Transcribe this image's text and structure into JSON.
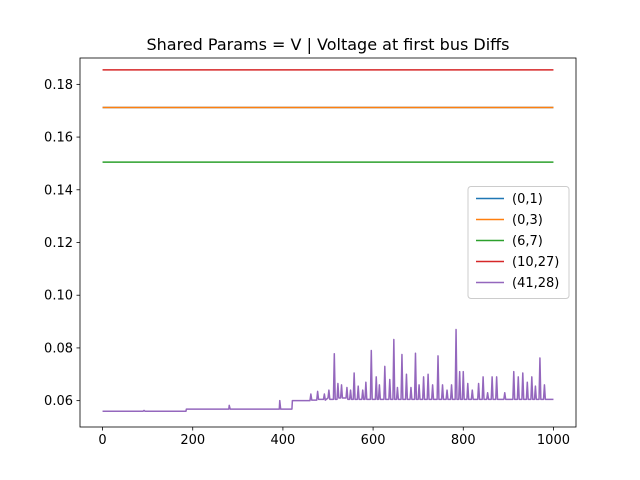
{
  "chart_data": {
    "type": "line",
    "title": "Shared Params =  V | Voltage at first bus Diffs",
    "xlabel": "",
    "ylabel": "",
    "xlim": [
      -50,
      1050
    ],
    "ylim": [
      0.05,
      0.19
    ],
    "x_ticks": [
      0,
      200,
      400,
      600,
      800,
      1000
    ],
    "x_tick_labels": [
      "0",
      "200",
      "400",
      "600",
      "800",
      "1000"
    ],
    "y_ticks": [
      0.06,
      0.08,
      0.1,
      0.12,
      0.14,
      0.16,
      0.18
    ],
    "y_tick_labels": [
      "0.06",
      "0.08",
      "0.10",
      "0.12",
      "0.14",
      "0.16",
      "0.18"
    ],
    "grid": false,
    "legend_position": "center-right",
    "series": [
      {
        "name": "(0,1)",
        "color": "#1f77b4",
        "points": [
          [
            0,
            0.1712
          ],
          [
            1000,
            0.1712
          ]
        ]
      },
      {
        "name": "(0,3)",
        "color": "#ff7f0e",
        "points": [
          [
            0,
            0.1712
          ],
          [
            1000,
            0.1712
          ]
        ]
      },
      {
        "name": "(6,7)",
        "color": "#2ca02c",
        "points": [
          [
            0,
            0.1505
          ],
          [
            1000,
            0.1505
          ]
        ]
      },
      {
        "name": "(10,27)",
        "color": "#d62728",
        "points": [
          [
            0,
            0.1855
          ],
          [
            1000,
            0.1855
          ]
        ]
      },
      {
        "name": "(41,28)",
        "color": "#9467bd",
        "points": [
          [
            0,
            0.056
          ],
          [
            90,
            0.056
          ],
          [
            92,
            0.0563
          ],
          [
            94,
            0.056
          ],
          [
            185,
            0.056
          ],
          [
            186,
            0.0568
          ],
          [
            280,
            0.0568
          ],
          [
            281,
            0.0582
          ],
          [
            283,
            0.0568
          ],
          [
            392,
            0.0568
          ],
          [
            393,
            0.06
          ],
          [
            395,
            0.0568
          ],
          [
            420,
            0.0568
          ],
          [
            421,
            0.06
          ],
          [
            460,
            0.06
          ],
          [
            462,
            0.0625
          ],
          [
            464,
            0.0602
          ],
          [
            475,
            0.0602
          ],
          [
            477,
            0.0635
          ],
          [
            479,
            0.0605
          ],
          [
            490,
            0.0605
          ],
          [
            492,
            0.0625
          ],
          [
            494,
            0.0602
          ],
          [
            500,
            0.061
          ],
          [
            502,
            0.064
          ],
          [
            504,
            0.0605
          ],
          [
            512,
            0.0605
          ],
          [
            514,
            0.0778
          ],
          [
            516,
            0.0605
          ],
          [
            520,
            0.0605
          ],
          [
            522,
            0.0665
          ],
          [
            524,
            0.061
          ],
          [
            528,
            0.061
          ],
          [
            530,
            0.066
          ],
          [
            532,
            0.061
          ],
          [
            540,
            0.061
          ],
          [
            542,
            0.065
          ],
          [
            544,
            0.0605
          ],
          [
            548,
            0.0605
          ],
          [
            550,
            0.064
          ],
          [
            552,
            0.0605
          ],
          [
            556,
            0.0605
          ],
          [
            558,
            0.0705
          ],
          [
            560,
            0.0605
          ],
          [
            565,
            0.0605
          ],
          [
            567,
            0.0655
          ],
          [
            569,
            0.0605
          ],
          [
            575,
            0.0605
          ],
          [
            577,
            0.064
          ],
          [
            579,
            0.0605
          ],
          [
            582,
            0.0605
          ],
          [
            584,
            0.067
          ],
          [
            586,
            0.0605
          ],
          [
            594,
            0.0605
          ],
          [
            596,
            0.079
          ],
          [
            598,
            0.0605
          ],
          [
            605,
            0.0605
          ],
          [
            607,
            0.069
          ],
          [
            609,
            0.0605
          ],
          [
            612,
            0.0605
          ],
          [
            614,
            0.066
          ],
          [
            616,
            0.0605
          ],
          [
            624,
            0.0605
          ],
          [
            626,
            0.073
          ],
          [
            628,
            0.0605
          ],
          [
            635,
            0.0605
          ],
          [
            637,
            0.068
          ],
          [
            639,
            0.0605
          ],
          [
            644,
            0.0605
          ],
          [
            646,
            0.0832
          ],
          [
            648,
            0.0605
          ],
          [
            652,
            0.0605
          ],
          [
            654,
            0.065
          ],
          [
            656,
            0.0605
          ],
          [
            662,
            0.0605
          ],
          [
            664,
            0.0775
          ],
          [
            666,
            0.0605
          ],
          [
            672,
            0.0605
          ],
          [
            674,
            0.07
          ],
          [
            676,
            0.0605
          ],
          [
            682,
            0.0605
          ],
          [
            684,
            0.065
          ],
          [
            686,
            0.0605
          ],
          [
            692,
            0.0605
          ],
          [
            694,
            0.078
          ],
          [
            696,
            0.0605
          ],
          [
            700,
            0.0605
          ],
          [
            702,
            0.066
          ],
          [
            704,
            0.0605
          ],
          [
            710,
            0.0605
          ],
          [
            712,
            0.069
          ],
          [
            714,
            0.0605
          ],
          [
            720,
            0.0605
          ],
          [
            722,
            0.07
          ],
          [
            724,
            0.0605
          ],
          [
            730,
            0.0605
          ],
          [
            732,
            0.066
          ],
          [
            734,
            0.0605
          ],
          [
            742,
            0.0605
          ],
          [
            744,
            0.077
          ],
          [
            746,
            0.0605
          ],
          [
            752,
            0.0605
          ],
          [
            754,
            0.066
          ],
          [
            756,
            0.0605
          ],
          [
            762,
            0.0605
          ],
          [
            764,
            0.064
          ],
          [
            766,
            0.0605
          ],
          [
            772,
            0.0605
          ],
          [
            774,
            0.066
          ],
          [
            776,
            0.0605
          ],
          [
            782,
            0.0605
          ],
          [
            784,
            0.087
          ],
          [
            786,
            0.0605
          ],
          [
            790,
            0.0605
          ],
          [
            792,
            0.071
          ],
          [
            794,
            0.0605
          ],
          [
            798,
            0.0605
          ],
          [
            800,
            0.071
          ],
          [
            802,
            0.0605
          ],
          [
            808,
            0.0605
          ],
          [
            810,
            0.0665
          ],
          [
            812,
            0.0605
          ],
          [
            818,
            0.0605
          ],
          [
            820,
            0.064
          ],
          [
            822,
            0.0605
          ],
          [
            832,
            0.0605
          ],
          [
            834,
            0.0665
          ],
          [
            836,
            0.0605
          ],
          [
            842,
            0.0605
          ],
          [
            844,
            0.069
          ],
          [
            846,
            0.0605
          ],
          [
            852,
            0.0605
          ],
          [
            854,
            0.063
          ],
          [
            856,
            0.0605
          ],
          [
            862,
            0.0605
          ],
          [
            864,
            0.069
          ],
          [
            866,
            0.0605
          ],
          [
            872,
            0.0605
          ],
          [
            874,
            0.069
          ],
          [
            876,
            0.0605
          ],
          [
            890,
            0.0605
          ],
          [
            892,
            0.063
          ],
          [
            894,
            0.0605
          ],
          [
            910,
            0.0605
          ],
          [
            912,
            0.071
          ],
          [
            914,
            0.0605
          ],
          [
            920,
            0.0605
          ],
          [
            922,
            0.069
          ],
          [
            924,
            0.0605
          ],
          [
            930,
            0.0605
          ],
          [
            932,
            0.0705
          ],
          [
            934,
            0.0605
          ],
          [
            940,
            0.0605
          ],
          [
            942,
            0.067
          ],
          [
            944,
            0.0605
          ],
          [
            950,
            0.0605
          ],
          [
            952,
            0.069
          ],
          [
            954,
            0.0605
          ],
          [
            958,
            0.0605
          ],
          [
            960,
            0.0655
          ],
          [
            962,
            0.0605
          ],
          [
            968,
            0.0605
          ],
          [
            970,
            0.0762
          ],
          [
            972,
            0.0605
          ],
          [
            978,
            0.0605
          ],
          [
            980,
            0.066
          ],
          [
            982,
            0.0605
          ],
          [
            1000,
            0.0605
          ]
        ]
      }
    ]
  }
}
